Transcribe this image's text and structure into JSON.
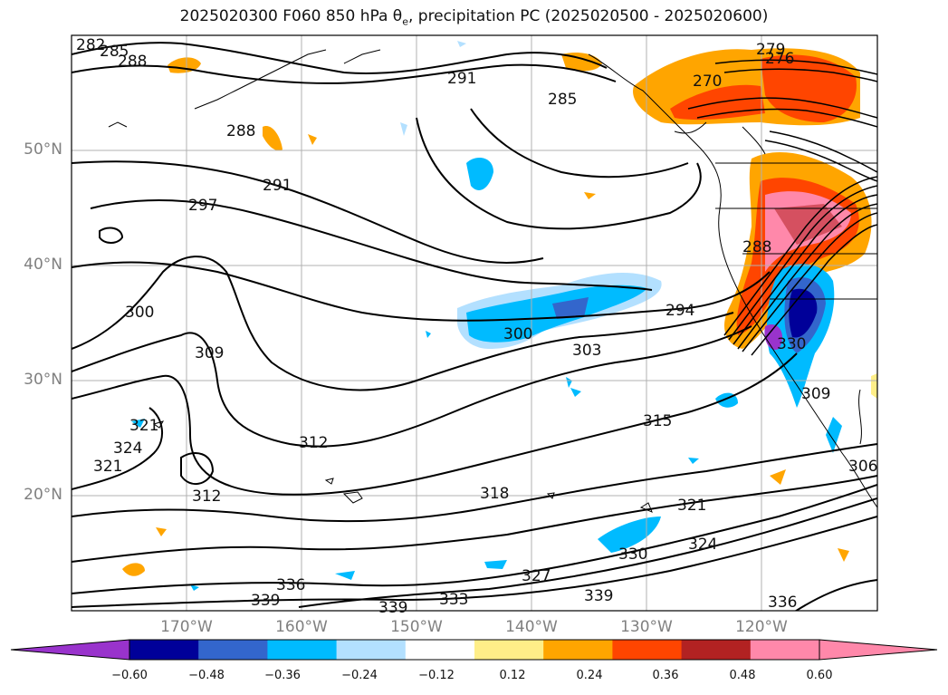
{
  "title": {
    "prefix": "2025020300 F060 850 hPa θ",
    "sub": "e",
    "suffix": ", precipitation PC (2025020500 - 2025020600)"
  },
  "lat_labels": [
    "50°N",
    "40°N",
    "30°N",
    "20°N"
  ],
  "lon_labels": [
    "170°W",
    "160°W",
    "150°W",
    "140°W",
    "130°W",
    "120°W"
  ],
  "colorbar": {
    "colors": [
      "#9933cc",
      "#000099",
      "#3366cc",
      "#00bbff",
      "#b3e0ff",
      "#ffffff",
      "#ffee88",
      "#ffa500",
      "#ff4500",
      "#b22222",
      "#ff88aa"
    ],
    "ticks": [
      "−0.60",
      "−0.48",
      "−0.36",
      "−0.24",
      "−0.12",
      "0.12",
      "0.24",
      "0.36",
      "0.48",
      "0.60"
    ]
  },
  "contour_labels": [
    "282",
    "285",
    "288",
    "291",
    "285",
    "279",
    "276",
    "270",
    "288",
    "297",
    "291",
    "288",
    "300",
    "294",
    "300",
    "303",
    "309",
    "315",
    "312",
    "321",
    "324",
    "321",
    "312",
    "318",
    "321",
    "309",
    "306",
    "324",
    "330",
    "327",
    "336",
    "333",
    "339",
    "339",
    "339",
    "336",
    "330"
  ]
}
